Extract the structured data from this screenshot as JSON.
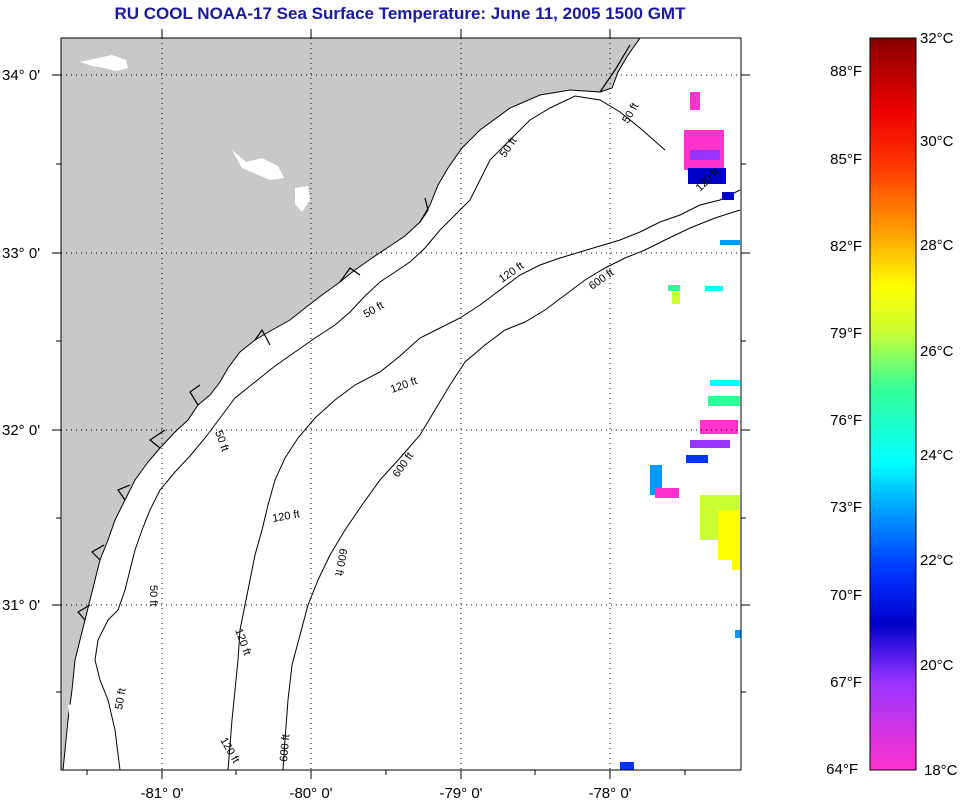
{
  "title": "RU COOL  NOAA-17  Sea Surface Temperature:  June 11, 2005 1500 GMT",
  "map": {
    "lat_labels": [
      "34° 0'",
      "33° 0'",
      "32° 0'",
      "31° 0'"
    ],
    "lon_labels": [
      "-81° 0'",
      "-80° 0'",
      "-79° 0'",
      "-78° 0'"
    ],
    "contour_labels": {
      "c50": "50 ft",
      "c120": "120 ft",
      "c600": "600 ft"
    },
    "colors": {
      "land": "#c8c8c8",
      "ocean": "#ffffff",
      "contour": "#000000"
    }
  },
  "colorbar": {
    "fahrenheit_labels": [
      "88°F",
      "85°F",
      "82°F",
      "79°F",
      "76°F",
      "73°F",
      "70°F",
      "67°F",
      "64°F"
    ],
    "celsius_labels": [
      "32°C",
      "30°C",
      "28°C",
      "26°C",
      "24°C",
      "22°C",
      "20°C",
      "18°C"
    ],
    "range_c": [
      18,
      32
    ]
  }
}
